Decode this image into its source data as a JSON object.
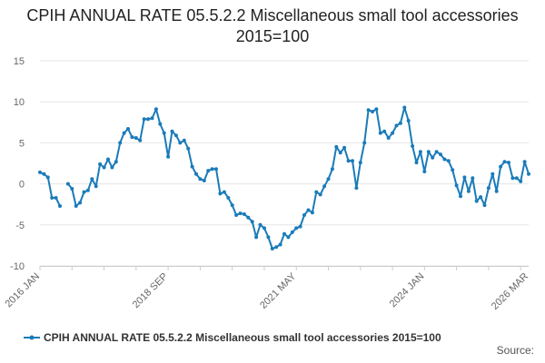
{
  "chart_data": {
    "type": "line",
    "title": "CPIH ANNUAL RATE 05.5.2.2 Miscellaneous small tool accessories 2015=100",
    "ylim": [
      -10,
      15
    ],
    "yticks": [
      15,
      10,
      5,
      0,
      -5,
      -10
    ],
    "xlabels": [
      "2016 JAN",
      "2018 SEP",
      "2021 MAY",
      "2024 JAN",
      "2026 MAR"
    ],
    "xlabel_index": [
      0,
      32,
      64,
      96,
      122
    ],
    "grid": true,
    "series": [
      {
        "name": "CPIH ANNUAL RATE 05.5.2.2 Miscellaneous small tool accessories 2015=100",
        "color": "#1a7bb9",
        "values": [
          1.4,
          1.2,
          0.8,
          -1.7,
          -1.7,
          -2.7,
          null,
          0.0,
          -0.6,
          -2.7,
          -2.3,
          -1.0,
          -0.8,
          0.6,
          -0.3,
          2.4,
          2.0,
          3.0,
          2.0,
          2.7,
          5.0,
          6.2,
          6.7,
          5.7,
          5.6,
          5.3,
          7.9,
          7.9,
          8.0,
          9.1,
          7.3,
          6.2,
          3.3,
          6.4,
          5.9,
          5.0,
          5.3,
          4.3,
          2.1,
          1.2,
          0.6,
          0.4,
          1.6,
          1.8,
          1.8,
          -1.2,
          -1.0,
          -1.7,
          -2.6,
          -3.8,
          -3.6,
          -3.7,
          -4.1,
          -4.6,
          -6.5,
          -5.0,
          -5.4,
          -6.5,
          -7.9,
          -7.7,
          -7.4,
          -6.1,
          -6.5,
          -5.9,
          -5.4,
          -5.2,
          -3.8,
          -3.2,
          -3.5,
          -1.0,
          -1.3,
          -0.3,
          0.6,
          1.8,
          4.5,
          3.8,
          4.4,
          2.8,
          2.8,
          -0.5,
          2.6,
          5.0,
          9.0,
          8.8,
          9.1,
          6.2,
          6.4,
          5.6,
          6.2,
          7.1,
          7.4,
          9.3,
          7.7,
          4.6,
          2.6,
          3.9,
          1.5,
          3.9,
          3.2,
          3.9,
          3.6,
          3.0,
          2.8,
          1.7,
          -0.2,
          -1.5,
          0.8,
          -0.9,
          0.7,
          -2.1,
          -1.6,
          -2.6,
          -0.5,
          1.2,
          -0.9,
          2.1,
          2.7,
          2.6,
          0.7,
          0.7,
          0.3,
          2.7,
          1.2
        ]
      }
    ],
    "legend": "bottom"
  },
  "footer": {
    "source_label": "Source:"
  }
}
